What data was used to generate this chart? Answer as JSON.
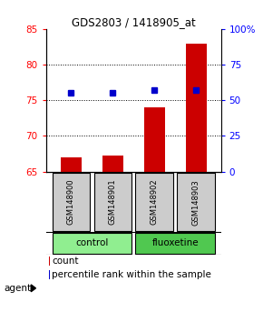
{
  "title": "GDS2803 / 1418905_at",
  "samples": [
    "GSM148900",
    "GSM148901",
    "GSM148902",
    "GSM148903"
  ],
  "bar_values": [
    67.0,
    67.2,
    74.0,
    83.0
  ],
  "dot_percentile": [
    55,
    55,
    57,
    57
  ],
  "ylim_left": [
    65,
    85
  ],
  "ylim_right": [
    0,
    100
  ],
  "yticks_left": [
    65,
    70,
    75,
    80,
    85
  ],
  "yticks_right": [
    0,
    25,
    50,
    75,
    100
  ],
  "ytick_labels_right": [
    "0",
    "25",
    "50",
    "75",
    "100%"
  ],
  "bar_color": "#cc0000",
  "dot_color": "#0000cc",
  "groups": [
    {
      "label": "control",
      "indices": [
        0,
        1
      ],
      "color": "#90EE90"
    },
    {
      "label": "fluoxetine",
      "indices": [
        2,
        3
      ],
      "color": "#50C850"
    }
  ],
  "agent_label": "agent",
  "legend_count_label": "count",
  "legend_pct_label": "percentile rank within the sample",
  "bar_width": 0.5,
  "sample_bg_color": "#cccccc",
  "grid_linestyle": "dotted"
}
